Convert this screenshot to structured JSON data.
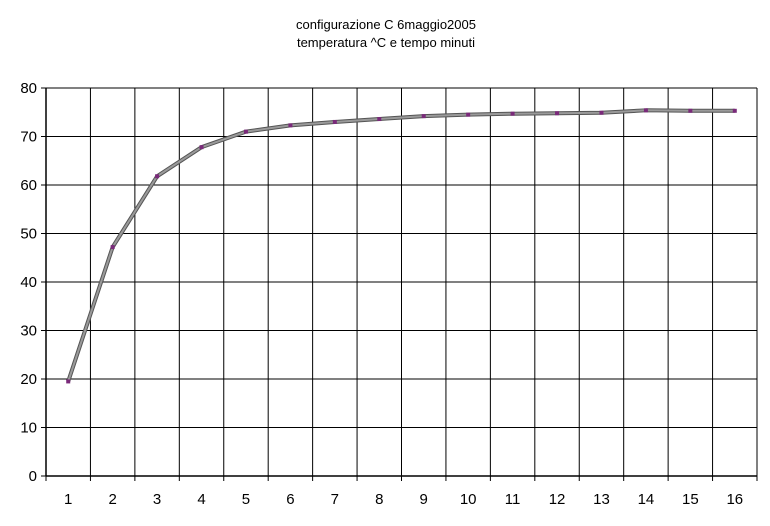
{
  "chart_data": {
    "type": "line",
    "title_lines": [
      "configurazione C 6maggio2005",
      "temperatura ^C e tempo minuti"
    ],
    "xlabel": "",
    "ylabel": "",
    "categories": [
      "1",
      "2",
      "3",
      "4",
      "5",
      "6",
      "7",
      "8",
      "9",
      "10",
      "11",
      "12",
      "13",
      "14",
      "15",
      "16"
    ],
    "series": [
      {
        "values": [
          19.5,
          47.2,
          61.8,
          67.8,
          71.0,
          72.3,
          73.0,
          73.6,
          74.2,
          74.5,
          74.7,
          74.8,
          74.9,
          75.4,
          75.3,
          75.3
        ]
      }
    ],
    "ylim": [
      0,
      80
    ],
    "yticks": [
      0,
      10,
      20,
      30,
      40,
      50,
      60,
      70,
      80
    ],
    "grid": true,
    "legend": "none",
    "colors": {
      "line": "#9a9a9a",
      "line_edge": "#555555",
      "marker": "#7a2a7a",
      "grid": "#000000",
      "axis": "#000000"
    }
  }
}
